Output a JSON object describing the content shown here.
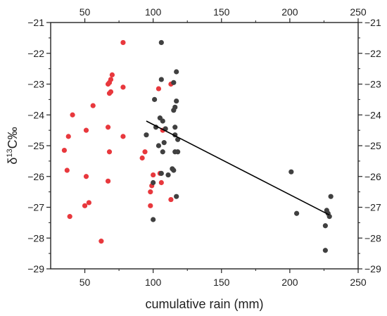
{
  "chart_data": {
    "type": "scatter",
    "xlabel": "cumulative rain (mm)",
    "ylabel_parts": {
      "delta": "δ",
      "sup": "13",
      "main": "C‰"
    },
    "xlim": [
      25,
      250
    ],
    "ylim": [
      -29,
      -21
    ],
    "xticks": [
      50,
      100,
      150,
      200,
      250
    ],
    "yticks": [
      -21,
      -22,
      -23,
      -24,
      -25,
      -26,
      -27,
      -28,
      -29
    ],
    "mirror_axes": true,
    "grid": false,
    "series": [
      {
        "color": "#e8383d",
        "points": [
          [
            35,
            -25.15
          ],
          [
            37,
            -25.8
          ],
          [
            38,
            -24.7
          ],
          [
            39,
            -27.3
          ],
          [
            41,
            -24.0
          ],
          [
            50,
            -26.95
          ],
          [
            51,
            -26.0
          ],
          [
            51,
            -24.5
          ],
          [
            53,
            -26.85
          ],
          [
            56,
            -23.7
          ],
          [
            62,
            -28.1
          ],
          [
            67,
            -23.0
          ],
          [
            67,
            -24.4
          ],
          [
            67,
            -26.15
          ],
          [
            68,
            -25.2
          ],
          [
            68,
            -22.95
          ],
          [
            68,
            -23.3
          ],
          [
            69,
            -23.25
          ],
          [
            69,
            -22.85
          ],
          [
            70,
            -22.7
          ],
          [
            78,
            -21.65
          ],
          [
            78,
            -23.1
          ],
          [
            78,
            -24.7
          ],
          [
            92,
            -25.4
          ],
          [
            94,
            -25.2
          ],
          [
            98,
            -26.5
          ],
          [
            98,
            -26.95
          ],
          [
            99,
            -26.3
          ],
          [
            100,
            -25.95
          ],
          [
            104,
            -23.15
          ],
          [
            105,
            -25.9
          ],
          [
            106,
            -26.2
          ],
          [
            107,
            -24.5
          ],
          [
            113,
            -23.0
          ],
          [
            113,
            -26.75
          ]
        ]
      },
      {
        "color": "#404040",
        "points": [
          [
            95,
            -24.65
          ],
          [
            100,
            -27.4
          ],
          [
            100,
            -26.2
          ],
          [
            101,
            -23.5
          ],
          [
            102,
            -24.4
          ],
          [
            104,
            -25.0
          ],
          [
            105,
            -24.1
          ],
          [
            106,
            -21.65
          ],
          [
            106,
            -22.85
          ],
          [
            106,
            -25.9
          ],
          [
            107,
            -24.2
          ],
          [
            107,
            -25.2
          ],
          [
            108,
            -24.9
          ],
          [
            109,
            -24.45
          ],
          [
            111,
            -25.95
          ],
          [
            114,
            -25.75
          ],
          [
            115,
            -25.8
          ],
          [
            115,
            -23.85
          ],
          [
            115,
            -22.95
          ],
          [
            116,
            -23.75
          ],
          [
            116,
            -24.4
          ],
          [
            116,
            -24.65
          ],
          [
            116,
            -25.2
          ],
          [
            117,
            -26.65
          ],
          [
            117,
            -23.55
          ],
          [
            117,
            -22.6
          ],
          [
            118,
            -25.2
          ],
          [
            118,
            -24.8
          ],
          [
            201,
            -25.85
          ],
          [
            205,
            -27.2
          ],
          [
            226,
            -27.6
          ],
          [
            226,
            -28.4
          ],
          [
            227,
            -27.1
          ],
          [
            228,
            -27.2
          ],
          [
            229,
            -27.3
          ],
          [
            230,
            -26.65
          ]
        ]
      }
    ],
    "trendline": {
      "color": "#000000",
      "x": [
        95,
        229
      ],
      "y": [
        -24.2,
        -27.25
      ]
    }
  }
}
